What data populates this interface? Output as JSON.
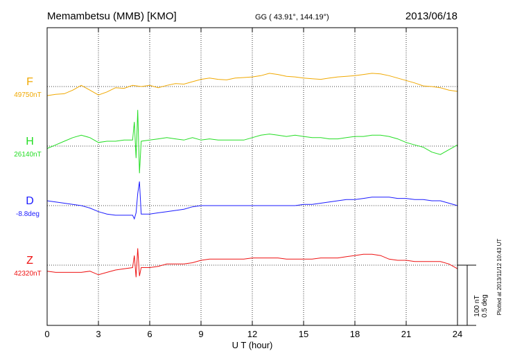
{
  "header": {
    "station": "Memambetsu (MMB)  [KMO]",
    "coords": "GG ( 43.91°, 144.19°)",
    "date": "2013/06/18"
  },
  "side_note": "Plotted at 2013/11/12 10:43 UT",
  "scale_labels": [
    "100 nT",
    "0.5 deg"
  ],
  "chart_data": {
    "type": "line",
    "xlabel": "U T (hour)",
    "xlim": [
      0,
      24
    ],
    "xticks": [
      0,
      3,
      6,
      9,
      12,
      15,
      18,
      21,
      24
    ],
    "grid": true,
    "series": [
      {
        "name": "F",
        "baseline_label": "49750nT",
        "color": "#f0a800",
        "x": [
          0,
          0.5,
          1,
          1.5,
          2,
          2.5,
          3,
          3.5,
          4,
          4.5,
          5,
          5.5,
          6,
          6.5,
          7,
          7.5,
          8,
          8.5,
          9,
          9.5,
          10,
          10.5,
          11,
          11.5,
          12,
          12.5,
          13,
          13.5,
          14,
          14.5,
          15,
          15.5,
          16,
          16.5,
          17,
          17.5,
          18,
          18.5,
          19,
          19.5,
          20,
          20.5,
          21,
          21.5,
          22,
          22.5,
          23,
          23.5,
          24
        ],
        "y": [
          -15,
          -13,
          -12,
          -6,
          2,
          -6,
          -14,
          -9,
          -2,
          -3,
          2,
          0,
          2,
          -2,
          2,
          5,
          4,
          8,
          12,
          14,
          12,
          11,
          14,
          15,
          16,
          18,
          22,
          20,
          17,
          16,
          14,
          13,
          12,
          14,
          16,
          17,
          18,
          20,
          22,
          21,
          18,
          14,
          10,
          6,
          1,
          0,
          -2,
          -6,
          -8
        ]
      },
      {
        "name": "H",
        "baseline_label": "26140nT",
        "color": "#22dd22",
        "x": [
          0,
          0.5,
          1,
          1.5,
          2,
          2.5,
          3,
          3.5,
          4,
          4.5,
          5,
          5.1,
          5.2,
          5.3,
          5.4,
          5.5,
          6,
          6.5,
          7,
          7.5,
          8,
          8.5,
          9,
          9.5,
          10,
          10.5,
          11,
          11.5,
          12,
          12.5,
          13,
          13.5,
          14,
          14.5,
          15,
          15.5,
          16,
          16.5,
          17,
          17.5,
          18,
          18.5,
          19,
          19.5,
          20,
          20.5,
          21,
          21.5,
          22,
          22.5,
          23,
          23.5,
          24
        ],
        "y": [
          -4,
          2,
          8,
          14,
          18,
          14,
          6,
          8,
          8,
          10,
          10,
          40,
          -20,
          60,
          -45,
          8,
          10,
          12,
          14,
          12,
          10,
          14,
          10,
          12,
          10,
          10,
          10,
          10,
          14,
          18,
          20,
          18,
          16,
          18,
          16,
          14,
          14,
          12,
          12,
          14,
          16,
          16,
          18,
          18,
          16,
          12,
          6,
          2,
          -2,
          -10,
          -14,
          -6,
          2
        ]
      },
      {
        "name": "D",
        "baseline_label": "-8.8deg",
        "color": "#1a1aff",
        "x": [
          0,
          0.5,
          1,
          1.5,
          2,
          2.5,
          3,
          3.5,
          4,
          4.5,
          5,
          5.1,
          5.2,
          5.3,
          5.4,
          5.5,
          6,
          6.5,
          7,
          7.5,
          8,
          8.5,
          9,
          9.5,
          10,
          10.5,
          11,
          11.5,
          12,
          12.5,
          13,
          13.5,
          14,
          14.5,
          15,
          15.5,
          16,
          16.5,
          17,
          17.5,
          18,
          18.5,
          19,
          19.5,
          20,
          20.5,
          21,
          21.5,
          22,
          22.5,
          23,
          23.5,
          24
        ],
        "y": [
          8,
          6,
          4,
          2,
          0,
          -4,
          -10,
          -14,
          -16,
          -16,
          -16,
          -22,
          -12,
          20,
          40,
          -14,
          -14,
          -12,
          -10,
          -8,
          -6,
          -2,
          0,
          0,
          0,
          0,
          0,
          0,
          0,
          0,
          0,
          0,
          0,
          0,
          2,
          2,
          4,
          6,
          8,
          10,
          10,
          12,
          14,
          14,
          14,
          12,
          12,
          10,
          10,
          8,
          8,
          4,
          0
        ]
      },
      {
        "name": "Z",
        "baseline_label": "42320nT",
        "color": "#ee1111",
        "x": [
          0,
          0.5,
          1,
          1.5,
          2,
          2.5,
          3,
          3.5,
          4,
          4.5,
          5,
          5.1,
          5.2,
          5.3,
          5.4,
          5.5,
          6,
          6.5,
          7,
          7.5,
          8,
          8.5,
          9,
          9.5,
          10,
          10.5,
          11,
          11.5,
          12,
          12.5,
          13,
          13.5,
          14,
          14.5,
          15,
          15.5,
          16,
          16.5,
          17,
          17.5,
          18,
          18.5,
          19,
          19.5,
          20,
          20.5,
          21,
          21.5,
          22,
          22.5,
          23,
          23.5,
          24
        ],
        "y": [
          -10,
          -12,
          -12,
          -12,
          -12,
          -10,
          -16,
          -12,
          -8,
          -6,
          -4,
          16,
          -20,
          28,
          -18,
          -4,
          -4,
          -2,
          2,
          2,
          2,
          4,
          8,
          10,
          10,
          10,
          10,
          10,
          12,
          12,
          12,
          12,
          10,
          10,
          10,
          10,
          12,
          12,
          12,
          14,
          16,
          18,
          18,
          16,
          10,
          8,
          8,
          6,
          6,
          6,
          6,
          2,
          -6
        ]
      }
    ]
  }
}
